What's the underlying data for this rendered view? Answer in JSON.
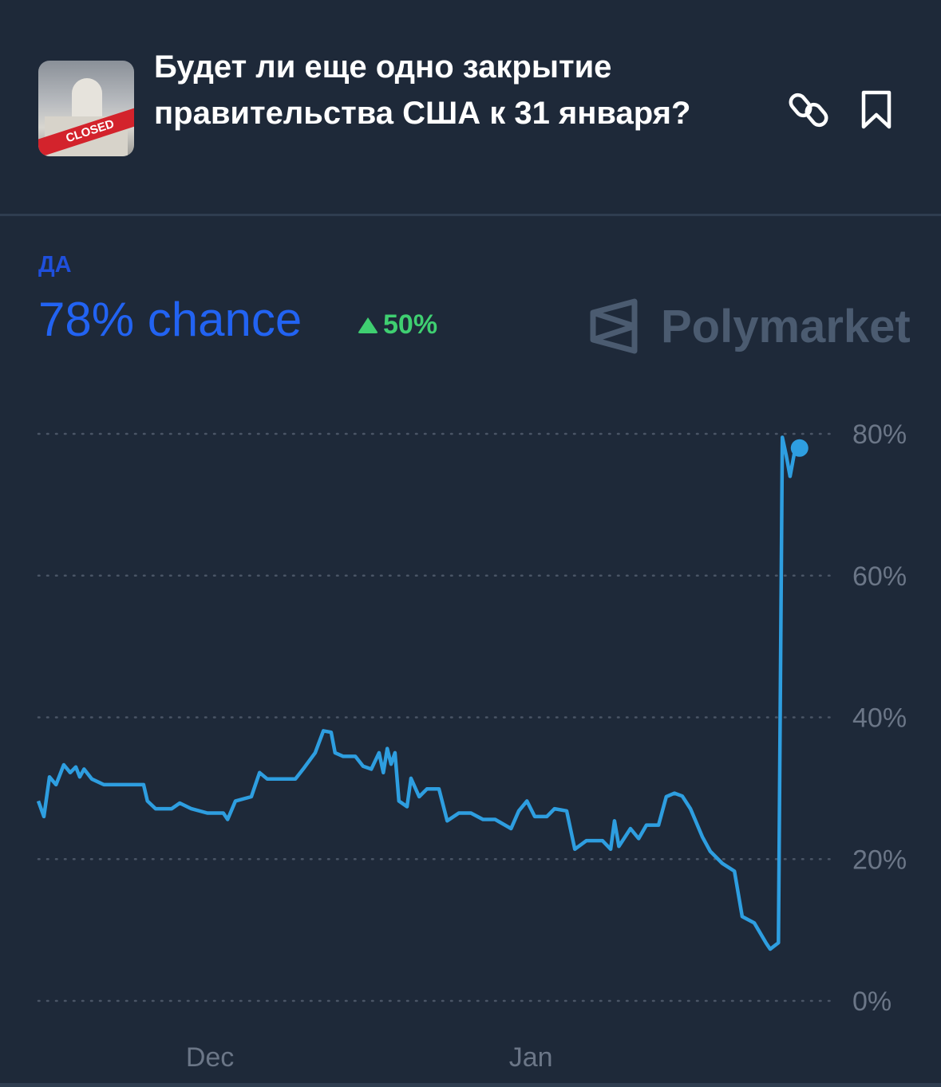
{
  "header": {
    "title": "Будет ли еще одно закрытие правительства США к 31 января?",
    "thumbnail_text": "CLOSED",
    "icons": [
      "link-icon",
      "bookmark-icon"
    ]
  },
  "summary": {
    "outcome_label": "ДА",
    "chance_text": "78% chance",
    "change_text": "50%",
    "change_direction": "up"
  },
  "brand": {
    "name": "Polymarket"
  },
  "colors": {
    "background": "#1e2939",
    "line": "#2e9ee0",
    "outcome_blue": "#2263f2",
    "change_green": "#3fcf71",
    "grid": "#4a5566",
    "axis_text": "#6b7687"
  },
  "chart_data": {
    "type": "line",
    "ylim": [
      0,
      80
    ],
    "y_ticks": [
      "0%",
      "20%",
      "40%",
      "60%",
      "80%"
    ],
    "y_tick_values": [
      0,
      20,
      40,
      60,
      80
    ],
    "x_ticks": [
      "Dec",
      "Jan"
    ],
    "x_tick_values": [
      "12-01 00:00",
      "01-01 00:00"
    ],
    "x_range": [
      "11-14 10:00",
      "01-30 07:00"
    ],
    "grid": "horizontal dotted",
    "series": [
      {
        "points": [
          [
            "11-14 10:00",
            28.2
          ],
          [
            "11-14 23:00",
            26
          ],
          [
            "11-15 12:00",
            31.6
          ],
          [
            "11-16 03:00",
            30.5
          ],
          [
            "11-16 21:00",
            33.3
          ],
          [
            "11-17 12:00",
            32.2
          ],
          [
            "11-18 01:00",
            33
          ],
          [
            "11-18 10:00",
            31.6
          ],
          [
            "11-18 20:00",
            32.7
          ],
          [
            "11-19 14:00",
            31.3
          ],
          [
            "11-20 18:00",
            30.5
          ],
          [
            "11-24 14:00",
            30.5
          ],
          [
            "11-24 23:00",
            28.2
          ],
          [
            "11-25 18:00",
            27.1
          ],
          [
            "11-27 07:00",
            27.1
          ],
          [
            "11-28 02:00",
            27.9
          ],
          [
            "11-29 05:00",
            27.1
          ],
          [
            "11-30 18:00",
            26.5
          ],
          [
            "12-02 07:00",
            26.5
          ],
          [
            "12-02 17:00",
            25.6
          ],
          [
            "12-03 11:00",
            28.2
          ],
          [
            "12-05 00:00",
            28.8
          ],
          [
            "12-05 19:00",
            32.2
          ],
          [
            "12-06 13:00",
            31.3
          ],
          [
            "12-09 06:00",
            31.3
          ],
          [
            "12-10 00:00",
            32.7
          ],
          [
            "12-11 04:00",
            35
          ],
          [
            "12-11 23:00",
            38.1
          ],
          [
            "12-12 17:00",
            37.9
          ],
          [
            "12-13 02:00",
            35
          ],
          [
            "12-13 21:00",
            34.5
          ],
          [
            "12-15 01:00",
            34.5
          ],
          [
            "12-15 19:00",
            33.1
          ],
          [
            "12-16 14:00",
            32.7
          ],
          [
            "12-17 08:00",
            35
          ],
          [
            "12-17 18:00",
            32.2
          ],
          [
            "12-18 03:00",
            35.6
          ],
          [
            "12-18 12:00",
            33.4
          ],
          [
            "12-18 21:00",
            35
          ],
          [
            "12-19 06:00",
            28.2
          ],
          [
            "12-20 01:00",
            27.4
          ],
          [
            "12-20 10:00",
            31.4
          ],
          [
            "12-21 05:00",
            28.8
          ],
          [
            "12-21 23:00",
            29.9
          ],
          [
            "12-23 03:00",
            29.9
          ],
          [
            "12-23 22:00",
            25.4
          ],
          [
            "12-25 01:00",
            26.5
          ],
          [
            "12-26 05:00",
            26.5
          ],
          [
            "12-27 09:00",
            25.6
          ],
          [
            "12-28 13:00",
            25.6
          ],
          [
            "12-30 02:00",
            24.3
          ],
          [
            "12-30 20:00",
            26.8
          ],
          [
            "12-31 15:00",
            28.2
          ],
          [
            "01-01 09:00",
            26
          ],
          [
            "01-02 13:00",
            26
          ],
          [
            "01-03 07:00",
            27.1
          ],
          [
            "01-04 11:00",
            26.8
          ],
          [
            "01-05 06:00",
            21.4
          ],
          [
            "01-06 09:00",
            22.6
          ],
          [
            "01-07 22:00",
            22.6
          ],
          [
            "01-08 17:00",
            21.4
          ],
          [
            "01-09 02:00",
            25.4
          ],
          [
            "01-09 12:00",
            21.8
          ],
          [
            "01-10 15:00",
            24.3
          ],
          [
            "01-11 10:00",
            22.9
          ],
          [
            "01-12 04:00",
            24.8
          ],
          [
            "01-13 08:00",
            24.8
          ],
          [
            "01-14 02:00",
            28.8
          ],
          [
            "01-14 21:00",
            29.3
          ],
          [
            "01-15 15:00",
            28.9
          ],
          [
            "01-16 10:00",
            27.1
          ],
          [
            "01-17 14:00",
            23.1
          ],
          [
            "01-18 08:00",
            21.1
          ],
          [
            "01-19 12:00",
            19.4
          ],
          [
            "01-20 16:00",
            18.3
          ],
          [
            "01-21 10:00",
            11.9
          ],
          [
            "01-22 14:00",
            11
          ],
          [
            "01-23 18:00",
            8.1
          ],
          [
            "01-24 03:00",
            7.3
          ],
          [
            "01-24 22:00",
            8.2
          ],
          [
            "01-25 07:00",
            79.5
          ],
          [
            "01-25 16:00",
            77
          ],
          [
            "01-26 01:00",
            74
          ],
          [
            "01-26 11:00",
            77.3
          ],
          [
            "01-26 23:00",
            78
          ]
        ]
      }
    ]
  }
}
